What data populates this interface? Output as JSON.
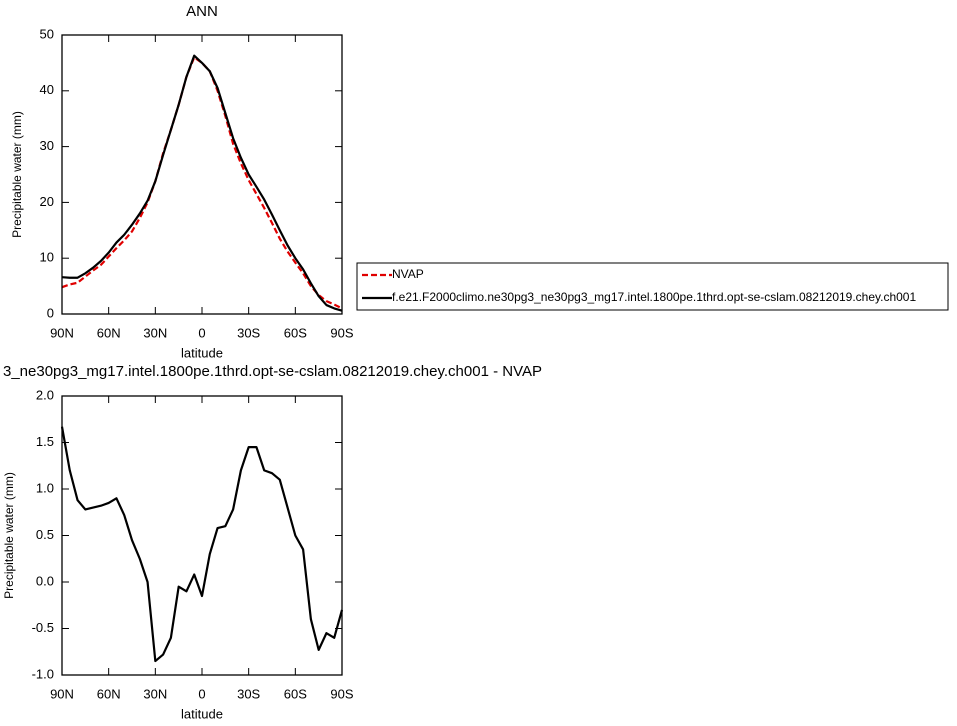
{
  "chart_data": [
    {
      "type": "line",
      "title": "ANN",
      "xlabel": "latitude",
      "ylabel": "Precipitable water (mm)",
      "x": [
        90,
        85,
        80,
        75,
        70,
        65,
        60,
        55,
        50,
        45,
        40,
        35,
        30,
        25,
        20,
        15,
        10,
        5,
        0,
        -5,
        -10,
        -15,
        -20,
        -25,
        -30,
        -35,
        -40,
        -45,
        -50,
        -55,
        -60,
        -65,
        -70,
        -75,
        -80,
        -85,
        -90
      ],
      "xlim": [
        90,
        -90
      ],
      "xticks": [
        {
          "value": 90,
          "label": "90N"
        },
        {
          "value": 60,
          "label": "60N"
        },
        {
          "value": 30,
          "label": "30N"
        },
        0,
        {
          "value": -30,
          "label": "30S"
        },
        {
          "value": -60,
          "label": "60S"
        },
        {
          "value": -90,
          "label": "90S"
        }
      ],
      "ylim": [
        0,
        50
      ],
      "yticks": [
        0,
        10,
        20,
        30,
        40,
        50
      ],
      "legend": "right",
      "series": [
        {
          "name": "NVAP",
          "color": "#e00000",
          "line_style": "dashed",
          "values": [
            4.8,
            5.3,
            5.6,
            6.7,
            7.8,
            8.8,
            10.3,
            11.8,
            13.2,
            14.8,
            17.2,
            20.0,
            23.8,
            28.8,
            33,
            37.5,
            42.5,
            46,
            45,
            43.5,
            40,
            35.5,
            30.5,
            27,
            24,
            21.5,
            19,
            16.3,
            13.5,
            11.2,
            9.2,
            7.3,
            5,
            3.4,
            2.3,
            1.7,
            1.0
          ]
        },
        {
          "name": "f.e21.F2000climo.ne30pg3_ne30pg3_mg17.intel.1800pe.1thrd.opt-se-cslam.08212019.chey.ch001",
          "color": "#000000",
          "line_style": "solid",
          "values": [
            6.6,
            6.5,
            6.5,
            7.3,
            8.3,
            9.5,
            11.0,
            12.8,
            14.2,
            16.0,
            18.0,
            20.3,
            23.8,
            28.5,
            33,
            37.5,
            42.5,
            46.3,
            45,
            43.5,
            40.5,
            36,
            31.5,
            28,
            25,
            22.8,
            20.5,
            17.8,
            15,
            12.3,
            10,
            8,
            5.5,
            3.2,
            1.6,
            1.0,
            0.6
          ]
        }
      ]
    },
    {
      "type": "line",
      "title": "3_ne30pg3_mg17.intel.1800pe.1thrd.opt-se-cslam.08212019.chey.ch001 - NVAP",
      "xlabel": "latitude",
      "ylabel": "Precipitable water (mm)",
      "x": [
        90,
        85,
        80,
        75,
        70,
        65,
        60,
        55,
        50,
        45,
        40,
        35,
        30,
        25,
        20,
        15,
        10,
        5,
        0,
        -5,
        -10,
        -15,
        -20,
        -25,
        -30,
        -35,
        -40,
        -45,
        -50,
        -55,
        -60,
        -65,
        -70,
        -75,
        -80,
        -85,
        -90
      ],
      "xlim": [
        90,
        -90
      ],
      "xticks": [
        {
          "value": 90,
          "label": "90N"
        },
        {
          "value": 60,
          "label": "60N"
        },
        {
          "value": 30,
          "label": "30N"
        },
        0,
        {
          "value": -30,
          "label": "30S"
        },
        {
          "value": -60,
          "label": "60S"
        },
        {
          "value": -90,
          "label": "90S"
        }
      ],
      "ylim": [
        -1.0,
        2.0
      ],
      "yticks": [
        {
          "value": -1.0,
          "label": "-1.0"
        },
        -0.5,
        {
          "value": 0,
          "label": "0.0"
        },
        0.5,
        {
          "value": 1.0,
          "label": "1.0"
        },
        1.5,
        {
          "value": 2.0,
          "label": "2.0"
        }
      ],
      "series": [
        {
          "color": "#000000",
          "line_style": "solid",
          "values": [
            1.67,
            1.2,
            0.88,
            0.78,
            0.8,
            0.82,
            0.85,
            0.9,
            0.72,
            0.45,
            0.25,
            0.0,
            -0.85,
            -0.78,
            -0.6,
            -0.05,
            -0.1,
            0.08,
            -0.15,
            0.3,
            0.58,
            0.6,
            0.78,
            1.2,
            1.45,
            1.45,
            1.2,
            1.17,
            1.1,
            0.8,
            0.5,
            0.35,
            -0.4,
            -0.73,
            -0.55,
            -0.6,
            -0.3
          ]
        }
      ]
    }
  ]
}
